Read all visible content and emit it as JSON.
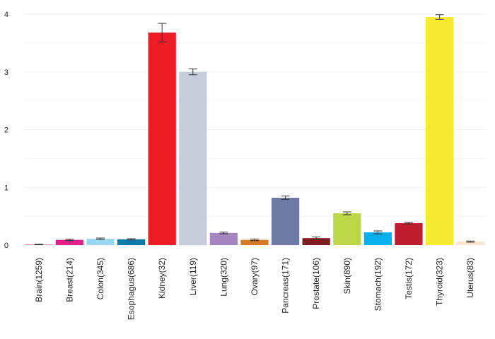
{
  "chart_data": {
    "type": "bar",
    "title": "",
    "xlabel": "",
    "ylabel": "",
    "ylim": [
      0,
      4.0
    ],
    "yticks": [
      "0",
      "1",
      "2",
      "3",
      "4"
    ],
    "grid": true,
    "legend": "none",
    "categories": [
      "Brain(1259)",
      "Breast(214)",
      "Colon(345)",
      "Esophagus(686)",
      "Kidney(32)",
      "Liver(119)",
      "Lung(320)",
      "Ovary(97)",
      "Pancreas(171)",
      "Prostate(106)",
      "Skin(890)",
      "Stomach(192)",
      "Testis(172)",
      "Thyroid(323)",
      "Uterus(83)"
    ],
    "values": [
      0.01,
      0.09,
      0.11,
      0.1,
      3.68,
      3.0,
      0.21,
      0.09,
      0.82,
      0.12,
      0.55,
      0.22,
      0.38,
      3.95,
      0.06
    ],
    "errors": [
      0.005,
      0.012,
      0.012,
      0.01,
      0.16,
      0.05,
      0.015,
      0.015,
      0.03,
      0.02,
      0.025,
      0.025,
      0.015,
      0.04,
      0.01
    ],
    "colors": [
      "#e8709a",
      "#e0218a",
      "#9bd7f0",
      "#0b7aa8",
      "#ee1c25",
      "#c8cbd9",
      "#a385c1",
      "#d67a26",
      "#6e7ba5",
      "#801c1f",
      "#bcd84a",
      "#06b0ee",
      "#bf1e2e",
      "#f6ea32",
      "#fbe5cf"
    ]
  }
}
